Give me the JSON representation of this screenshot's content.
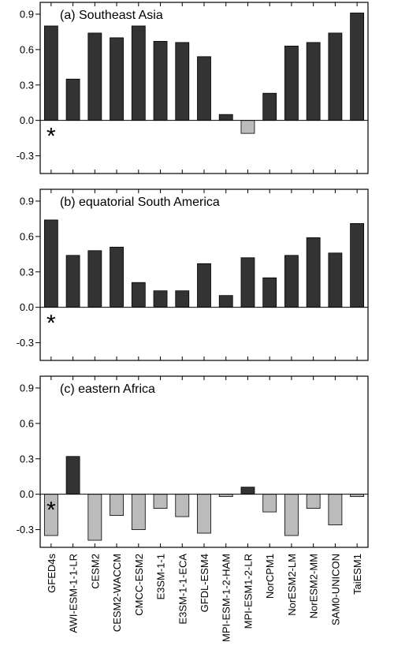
{
  "chart_data": {
    "type": "bar",
    "categories": [
      "GFED4s",
      "AWI-ESM-1-1-LR",
      "CESM2",
      "CESM2-WACCM",
      "CMCC-ESM2",
      "E3SM-1-1",
      "E3SM-1-1-ECA",
      "GFDL-ESM4",
      "MPI-ESM-1-2-HAM",
      "MPI-ESM1-2-LR",
      "NorCPM1",
      "NorESM2-LM",
      "NorESM2-MM",
      "SAM0-UNICON",
      "TaiESM1"
    ],
    "ylim": [
      -0.45,
      1.0
    ],
    "yticks": [
      -0.3,
      0.0,
      0.3,
      0.6,
      0.9
    ],
    "ytick_labels": [
      "-0.3",
      "0.0",
      "0.3",
      "0.6",
      "0.9"
    ],
    "colors": {
      "positive": "#333333",
      "negative": "#bbbbbb",
      "edge": "#000000"
    },
    "marker": {
      "symbol": "*",
      "category": "GFED4s"
    },
    "panels": [
      {
        "title": "(a) Southeast Asia",
        "values": [
          0.8,
          0.35,
          0.74,
          0.7,
          0.8,
          0.67,
          0.66,
          0.54,
          0.05,
          -0.11,
          0.23,
          0.63,
          0.66,
          0.74,
          0.91
        ]
      },
      {
        "title": "(b) equatorial South America",
        "values": [
          0.74,
          0.44,
          0.48,
          0.51,
          0.21,
          0.14,
          0.14,
          0.37,
          0.1,
          0.42,
          0.25,
          0.44,
          0.59,
          0.46,
          0.71
        ]
      },
      {
        "title": "(c) eastern Africa",
        "values": [
          -0.35,
          0.32,
          -0.39,
          -0.18,
          -0.3,
          -0.12,
          -0.19,
          -0.33,
          -0.02,
          0.06,
          -0.15,
          -0.35,
          -0.12,
          -0.26,
          -0.02
        ]
      }
    ]
  }
}
